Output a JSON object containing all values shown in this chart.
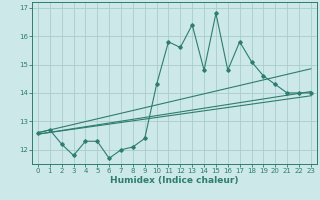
{
  "xlabel": "Humidex (Indice chaleur)",
  "ylabel": "",
  "bg_color": "#cce8e8",
  "grid_color": "#aacccc",
  "line_color": "#2e7d6e",
  "xlim": [
    -0.5,
    23.5
  ],
  "ylim": [
    11.5,
    17.2
  ],
  "yticks": [
    12,
    13,
    14,
    15,
    16,
    17
  ],
  "xticks": [
    0,
    1,
    2,
    3,
    4,
    5,
    6,
    7,
    8,
    9,
    10,
    11,
    12,
    13,
    14,
    15,
    16,
    17,
    18,
    19,
    20,
    21,
    22,
    23
  ],
  "data_x": [
    0,
    1,
    2,
    3,
    4,
    5,
    6,
    7,
    8,
    9,
    10,
    11,
    12,
    13,
    14,
    15,
    16,
    17,
    18,
    19,
    20,
    21,
    22,
    23
  ],
  "data_y": [
    12.6,
    12.7,
    12.2,
    11.8,
    12.3,
    12.3,
    11.7,
    12.0,
    12.1,
    12.4,
    14.3,
    15.8,
    15.6,
    16.4,
    14.8,
    16.8,
    14.8,
    15.8,
    15.1,
    14.6,
    14.3,
    14.0,
    14.0,
    14.0
  ],
  "trend1_x": [
    0,
    23
  ],
  "trend1_y": [
    12.55,
    14.05
  ],
  "trend2_x": [
    0,
    23
  ],
  "trend2_y": [
    12.6,
    14.85
  ],
  "trend3_x": [
    0,
    23
  ],
  "trend3_y": [
    12.55,
    13.9
  ]
}
